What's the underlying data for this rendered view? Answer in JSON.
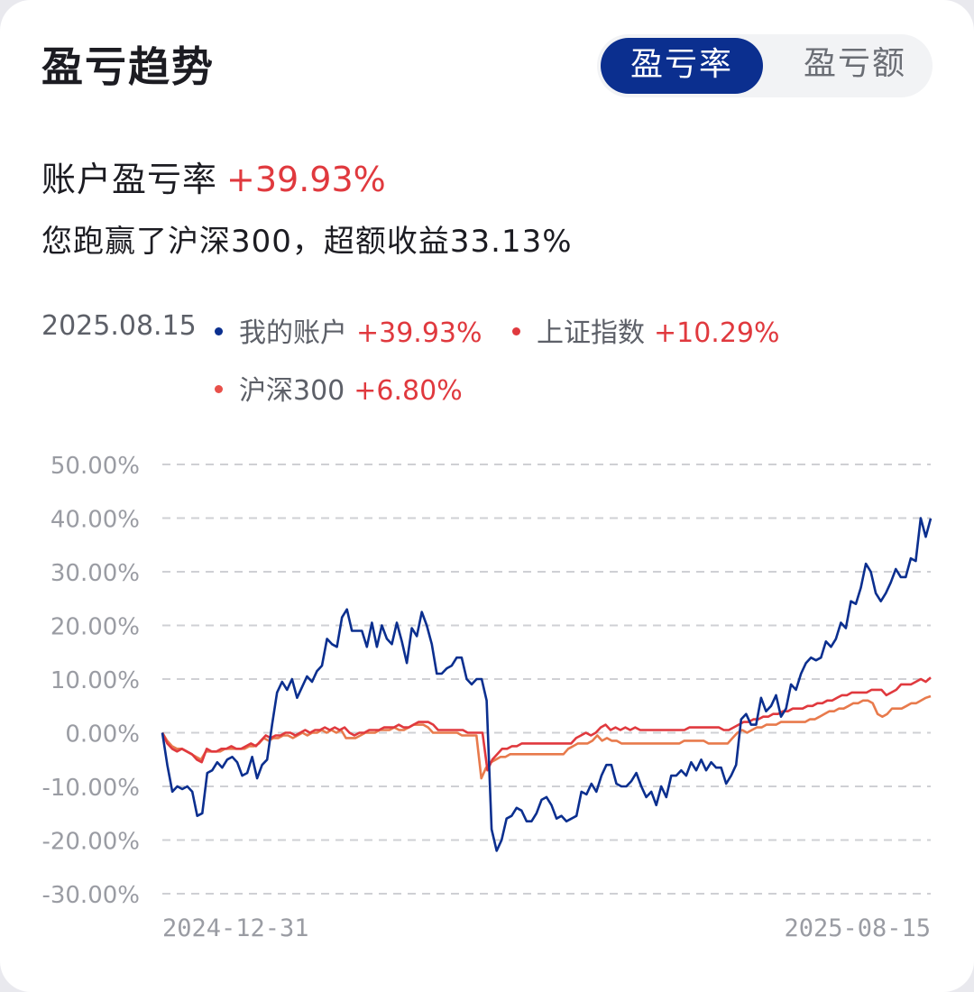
{
  "header": {
    "title": "盈亏趋势"
  },
  "toggle": {
    "rate_label": "盈亏率",
    "amount_label": "盈亏额",
    "selected": "盈亏率"
  },
  "summary": {
    "label": "账户盈亏率",
    "value": "+39.93%",
    "beat_text": "您跑赢了沪深300，超额收益33.13%"
  },
  "legend": {
    "date": "2025.08.15",
    "items": [
      {
        "name": "我的账户",
        "value": "+39.93%",
        "color": "#0b2f8f"
      },
      {
        "name": "上证指数",
        "value": "+10.29%",
        "color": "#e0393e"
      },
      {
        "name": "沪深300",
        "value": "+6.80%",
        "color": "#e87a4c"
      }
    ]
  },
  "colors": {
    "up": "#e0393e",
    "accent": "#0b2f8f",
    "grid": "#cfd0d4",
    "tick": "#9a9ca3"
  },
  "chart_data": {
    "type": "line",
    "ylabel": "",
    "xlabel": "",
    "ylim": [
      -30,
      50
    ],
    "y_ticks": [
      "50.00%",
      "40.00%",
      "30.00%",
      "20.00%",
      "10.00%",
      "0.00%",
      "-10.00%",
      "-20.00%",
      "-30.00%"
    ],
    "y_tick_values": [
      50,
      40,
      30,
      20,
      10,
      0,
      -10,
      -20,
      -30
    ],
    "x_tick_labels": [
      "2024-12-31",
      "2025-08-15"
    ],
    "grid": true,
    "series": [
      {
        "name": "我的账户",
        "color": "#0b2f8f",
        "values": [
          0,
          -6,
          -11,
          -10,
          -10.5,
          -10,
          -11,
          -15.5,
          -15,
          -7.5,
          -7,
          -5.5,
          -6.5,
          -5,
          -4.5,
          -5.5,
          -8,
          -7.5,
          -4.5,
          -8.5,
          -6,
          -5,
          1.5,
          7.5,
          9.5,
          8,
          10,
          6.5,
          8.5,
          10.5,
          9.5,
          11.5,
          12.5,
          17.5,
          16.5,
          16,
          21.5,
          23,
          19,
          19,
          19,
          16,
          20.5,
          16,
          20,
          17.5,
          16.5,
          20.5,
          17,
          13,
          19.5,
          18,
          22.5,
          20,
          16.5,
          11,
          11,
          12,
          12.5,
          14,
          14,
          10,
          9,
          10,
          10,
          6,
          -18,
          -22,
          -20,
          -16,
          -15.5,
          -14,
          -14.5,
          -16.5,
          -16.5,
          -15,
          -12.5,
          -12,
          -13.5,
          -16,
          -15.5,
          -16.5,
          -16,
          -15.5,
          -11,
          -11.5,
          -9.5,
          -11,
          -8,
          -6,
          -6,
          -9.5,
          -10,
          -10,
          -9,
          -7.5,
          -10,
          -12,
          -11,
          -13.5,
          -10,
          -12,
          -8,
          -8,
          -7,
          -8,
          -5.5,
          -7,
          -5,
          -7,
          -5.5,
          -6.5,
          -6.5,
          -9.5,
          -8,
          -6,
          2.5,
          3.5,
          1.5,
          1.5,
          6.5,
          4,
          5,
          7,
          3,
          4.5,
          9,
          8,
          11,
          13,
          14,
          13.5,
          14,
          17,
          16,
          17.5,
          20.5,
          19.5,
          24.5,
          24,
          27,
          31.5,
          30,
          26,
          24.5,
          26,
          28,
          30.5,
          29,
          29,
          32.5,
          32,
          40,
          36.5,
          39.93
        ]
      },
      {
        "name": "上证指数",
        "color": "#e0393e",
        "values": [
          0,
          -2,
          -3,
          -3.5,
          -3,
          -3.5,
          -4,
          -5,
          -5.5,
          -3,
          -3.5,
          -3.5,
          -3,
          -3,
          -2.5,
          -3,
          -3,
          -2.5,
          -2,
          -2.5,
          -1.5,
          -0.5,
          -1,
          -0.5,
          -0.5,
          0,
          0,
          -0.5,
          0,
          0.5,
          0,
          0.5,
          0.5,
          1,
          0.5,
          1,
          0.5,
          1,
          0,
          -0.5,
          0,
          0,
          0.5,
          0.5,
          0.5,
          1,
          1,
          1,
          1.5,
          1,
          1,
          1.5,
          2,
          2,
          2,
          1.5,
          0.5,
          0.5,
          0.5,
          0.5,
          0.5,
          0.5,
          0,
          0,
          0,
          0,
          -7,
          -5,
          -4,
          -3,
          -3,
          -2.5,
          -2.5,
          -2,
          -2,
          -2,
          -2,
          -2,
          -2,
          -2,
          -2,
          -2,
          -2,
          -2,
          -1,
          -0.5,
          0,
          -0.5,
          0,
          1,
          1.5,
          0.5,
          1,
          0.5,
          1,
          0.5,
          1,
          0.5,
          0.5,
          0.5,
          0.5,
          0.5,
          0.5,
          0.5,
          0.5,
          0.5,
          0.5,
          1,
          1,
          1,
          1,
          1,
          1,
          1,
          0.5,
          0.5,
          1,
          1.5,
          2,
          2,
          2.5,
          2.5,
          3,
          3,
          3.5,
          3.5,
          4,
          4,
          4.5,
          4.5,
          4.5,
          5,
          5,
          5.5,
          5.5,
          6,
          6,
          6.5,
          7,
          7,
          7.5,
          7.5,
          7.5,
          7.5,
          8,
          8,
          8,
          7,
          7.5,
          8,
          9,
          9,
          9,
          9.5,
          10,
          9.5,
          10.29
        ]
      },
      {
        "name": "沪深300",
        "color": "#e87a4c",
        "values": [
          0,
          -1.5,
          -2.5,
          -3,
          -3,
          -3.5,
          -4,
          -4.5,
          -5,
          -3.5,
          -3.5,
          -3.5,
          -3.5,
          -3,
          -3,
          -3,
          -3,
          -3,
          -2.5,
          -2.5,
          -2,
          -1,
          -1.5,
          -1,
          -1,
          -0.5,
          -0.5,
          -1,
          -0.5,
          0,
          -0.5,
          0,
          0,
          0.5,
          0,
          0.5,
          0,
          0.5,
          -1,
          -1,
          -1,
          -0.5,
          0,
          0,
          0,
          0.5,
          0.5,
          0.5,
          1,
          0.5,
          0.5,
          1,
          1.5,
          1.5,
          1.5,
          1,
          0,
          0,
          0,
          0,
          0,
          0,
          -0.5,
          -0.5,
          -0.5,
          -0.5,
          -8.5,
          -6.5,
          -5.5,
          -5,
          -4.5,
          -4.5,
          -4,
          -4,
          -4,
          -4,
          -4,
          -4,
          -4,
          -4,
          -4,
          -4,
          -4,
          -4,
          -3,
          -2.5,
          -2,
          -2,
          -2,
          -1.5,
          -0.5,
          -1.5,
          -1,
          -1.5,
          -1.5,
          -2,
          -2,
          -2,
          -2,
          -2,
          -2,
          -2,
          -2,
          -2,
          -2,
          -2,
          -2,
          -2,
          -1.5,
          -1.5,
          -1.5,
          -1.5,
          -1.5,
          -2,
          -2,
          -2,
          -2,
          -2,
          -1,
          0,
          0.5,
          0,
          0.5,
          1,
          1,
          1.5,
          1.5,
          1.5,
          2,
          2,
          2,
          2,
          2,
          2,
          2.5,
          2.5,
          3,
          3.5,
          4,
          4,
          4.5,
          4.5,
          5,
          5.5,
          5.5,
          6,
          6,
          5.5,
          3.5,
          3,
          3.5,
          4.5,
          4.5,
          4.5,
          5,
          5.5,
          5.5,
          6,
          6.5,
          6.8
        ]
      }
    ]
  }
}
